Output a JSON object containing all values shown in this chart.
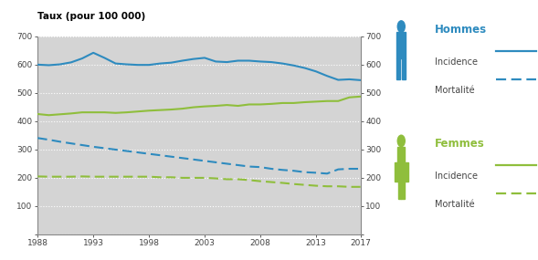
{
  "title": "Taux (pour 100 000)",
  "plot_bg_color": "#d4d4d4",
  "blue_color": "#2e8bbf",
  "green_color": "#8fbe3c",
  "years": [
    1988,
    1989,
    1990,
    1991,
    1992,
    1993,
    1994,
    1995,
    1996,
    1997,
    1998,
    1999,
    2000,
    2001,
    2002,
    2003,
    2004,
    2005,
    2006,
    2007,
    2008,
    2009,
    2010,
    2011,
    2012,
    2013,
    2014,
    2015,
    2016,
    2017
  ],
  "hommes_incidence": [
    600,
    598,
    601,
    608,
    622,
    642,
    624,
    604,
    601,
    599,
    599,
    604,
    607,
    614,
    620,
    624,
    611,
    609,
    614,
    614,
    611,
    609,
    604,
    597,
    588,
    576,
    560,
    546,
    548,
    545
  ],
  "hommes_mortalite": [
    340,
    334,
    327,
    321,
    315,
    309,
    304,
    299,
    294,
    289,
    284,
    279,
    274,
    269,
    264,
    259,
    254,
    249,
    244,
    239,
    237,
    231,
    227,
    224,
    219,
    217,
    214,
    229,
    231,
    231
  ],
  "femmes_incidence": [
    425,
    421,
    424,
    427,
    431,
    431,
    431,
    429,
    431,
    434,
    437,
    439,
    441,
    444,
    449,
    452,
    454,
    457,
    454,
    459,
    459,
    461,
    464,
    464,
    467,
    469,
    471,
    471,
    484,
    487
  ],
  "femmes_mortalite": [
    204,
    203,
    203,
    203,
    204,
    203,
    203,
    203,
    203,
    203,
    203,
    201,
    201,
    199,
    199,
    199,
    197,
    194,
    194,
    191,
    187,
    184,
    181,
    177,
    174,
    171,
    169,
    169,
    167,
    167
  ],
  "xlim": [
    1988,
    2017
  ],
  "ylim": [
    0,
    700
  ],
  "xticks": [
    1988,
    1993,
    1998,
    2003,
    2008,
    2013,
    2017
  ],
  "yticks": [
    0,
    100,
    200,
    300,
    400,
    500,
    600,
    700
  ],
  "grid_color": "#ffffff",
  "text_color": "#444444",
  "legend_hommes": "Hommes",
  "legend_femmes": "Femmes",
  "legend_incidence": "Incidence",
  "legend_mortalite": "Mortalité"
}
